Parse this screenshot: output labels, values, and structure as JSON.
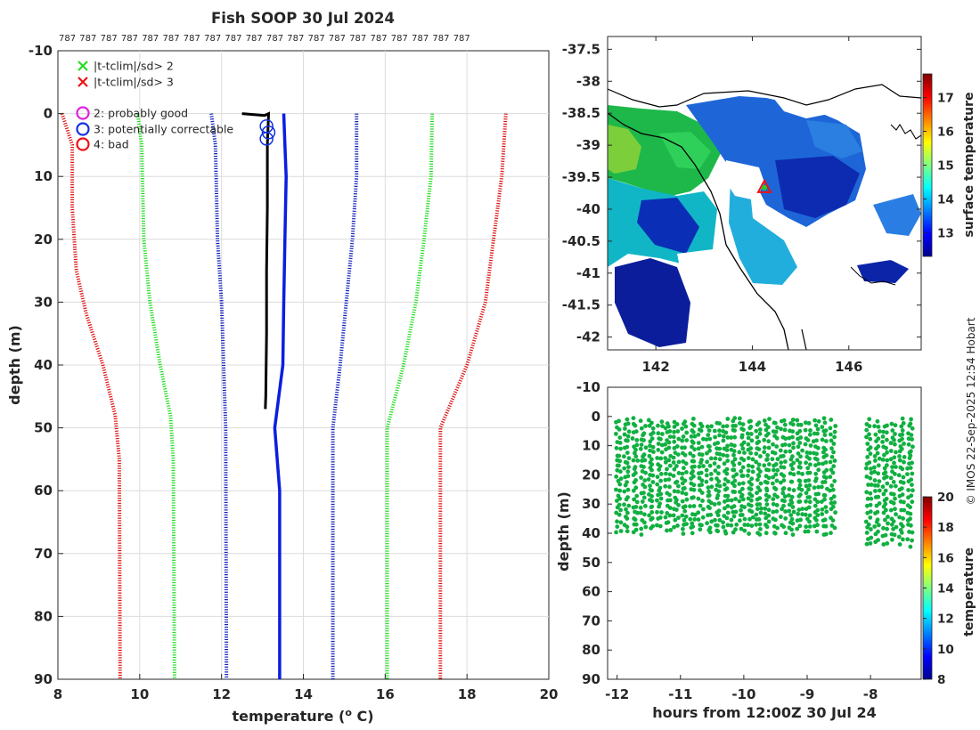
{
  "chart_data": [
    {
      "type": "line",
      "name": "profile",
      "title": "Fish SOOP 30 Jul 2024",
      "xlabel": "temperature (",
      "xlabel_sup": "o",
      "xlabel_tail": " C)",
      "ylabel": "depth (m)",
      "xlim": [
        8,
        20
      ],
      "ylim": [
        -10,
        90
      ],
      "xticks": [
        "8",
        "10",
        "12",
        "14",
        "16",
        "18",
        "20"
      ],
      "yticks": [
        "-10",
        "0",
        "10",
        "20",
        "30",
        "40",
        "50",
        "60",
        "70",
        "80",
        "90"
      ],
      "counts_row": [
        "787",
        "787",
        "787",
        "787",
        "787",
        "787",
        "787",
        "787",
        "787",
        "787",
        "787",
        "787",
        "787",
        "787",
        "787",
        "787",
        "787",
        "787",
        "787",
        "787"
      ],
      "legend_items": [
        {
          "label": "|t-tclim|/sd> 2",
          "color": "#22dd22",
          "marker": "x"
        },
        {
          "label": "|t-tclim|/sd> 3",
          "color": "#ee1111",
          "marker": "x"
        },
        {
          "label": "2: probably good",
          "color": "#dd22dd",
          "marker": "o"
        },
        {
          "label": "3: potentially correctable",
          "color": "#1133dd",
          "marker": "o"
        },
        {
          "label": "4: bad",
          "color": "#ee1111",
          "marker": "o"
        }
      ],
      "series": [
        {
          "name": "clim -3sd",
          "color": "#dd1111",
          "style": "dotted",
          "points": [
            [
              8.1,
              0
            ],
            [
              8.35,
              5
            ],
            [
              8.35,
              15
            ],
            [
              8.45,
              25
            ],
            [
              8.7,
              32
            ],
            [
              9.1,
              40
            ],
            [
              9.4,
              48
            ],
            [
              9.5,
              55
            ],
            [
              9.52,
              90
            ]
          ]
        },
        {
          "name": "clim -2sd",
          "color": "#22dd22",
          "style": "dotted",
          "points": [
            [
              9.95,
              0
            ],
            [
              10.05,
              5
            ],
            [
              10.1,
              20
            ],
            [
              10.25,
              30
            ],
            [
              10.5,
              40
            ],
            [
              10.75,
              48
            ],
            [
              10.82,
              55
            ],
            [
              10.85,
              90
            ]
          ]
        },
        {
          "name": "clim -1sd",
          "color": "#1122bb",
          "style": "dotted",
          "points": [
            [
              11.75,
              0
            ],
            [
              11.85,
              5
            ],
            [
              11.9,
              20
            ],
            [
              12.0,
              30
            ],
            [
              12.05,
              40
            ],
            [
              12.1,
              50
            ],
            [
              12.12,
              90
            ]
          ]
        },
        {
          "name": "clim +1sd",
          "color": "#1122bb",
          "style": "dotted",
          "points": [
            [
              15.3,
              0
            ],
            [
              15.3,
              10
            ],
            [
              15.2,
              20
            ],
            [
              15.05,
              30
            ],
            [
              14.9,
              40
            ],
            [
              14.72,
              50
            ],
            [
              14.72,
              90
            ]
          ]
        },
        {
          "name": "clim +2sd",
          "color": "#22dd22",
          "style": "dotted",
          "points": [
            [
              17.15,
              0
            ],
            [
              17.12,
              10
            ],
            [
              16.95,
              20
            ],
            [
              16.75,
              30
            ],
            [
              16.45,
              40
            ],
            [
              16.05,
              50
            ],
            [
              16.05,
              90
            ]
          ]
        },
        {
          "name": "clim +3sd",
          "color": "#dd1111",
          "style": "dotted",
          "points": [
            [
              18.95,
              0
            ],
            [
              18.85,
              10
            ],
            [
              18.65,
              20
            ],
            [
              18.45,
              30
            ],
            [
              18.0,
              40
            ],
            [
              17.35,
              50
            ],
            [
              17.35,
              90
            ]
          ]
        },
        {
          "name": "climatology mean",
          "color": "#0a1ee0",
          "style": "solid",
          "points": [
            [
              13.52,
              0
            ],
            [
              13.55,
              5
            ],
            [
              13.58,
              10
            ],
            [
              13.55,
              20
            ],
            [
              13.52,
              30
            ],
            [
              13.5,
              40
            ],
            [
              13.3,
              50
            ],
            [
              13.42,
              60
            ],
            [
              13.42,
              70
            ],
            [
              13.42,
              90
            ]
          ]
        },
        {
          "name": "measured temperature",
          "color": "#000000",
          "style": "solid",
          "points": [
            [
              12.5,
              0
            ],
            [
              13.05,
              0.3
            ],
            [
              13.15,
              0
            ],
            [
              13.12,
              5
            ],
            [
              13.12,
              15
            ],
            [
              13.1,
              25
            ],
            [
              13.1,
              35
            ],
            [
              13.08,
              45
            ],
            [
              13.07,
              47
            ]
          ]
        }
      ],
      "flag_circles": [
        [
          13.1,
          2
        ],
        [
          13.15,
          3
        ],
        [
          13.1,
          4
        ]
      ]
    },
    {
      "type": "heatmap",
      "name": "sst map",
      "xticks": [
        "142",
        "144",
        "146"
      ],
      "yticks": [
        "-37.5",
        "-38",
        "-38.5",
        "-39",
        "-39.5",
        "-40",
        "-40.5",
        "-41",
        "-41.5",
        "-42"
      ],
      "xlim": [
        141,
        147.5
      ],
      "ylim": [
        -42.2,
        -37.3
      ],
      "marker": {
        "lon": 144.25,
        "lat": -39.65,
        "symbol": "triangle"
      },
      "colorbar": {
        "label": "surface temperature",
        "ticks": [
          "13",
          "14",
          "15",
          "16",
          "17"
        ],
        "range": [
          12.3,
          17.7
        ]
      }
    },
    {
      "type": "scatter",
      "name": "depth-time sections",
      "xlabel": "hours from 12:00Z 30 Jul 24",
      "ylabel": "depth (m)",
      "xlim": [
        -12.15,
        -7.2
      ],
      "ylim": [
        -10,
        90
      ],
      "xticks": [
        "-12",
        "-11",
        "-10",
        "-9",
        "-8"
      ],
      "yticks": [
        "-10",
        "0",
        "10",
        "20",
        "30",
        "40",
        "50",
        "60",
        "70",
        "80",
        "90"
      ],
      "point_color": "#10b040",
      "cast_groups": [
        {
          "start": -12.0,
          "end": -8.62,
          "spacing": 0.13,
          "maxdepth": 41
        },
        {
          "start": -8.05,
          "end": -7.32,
          "spacing": 0.13,
          "maxdepth": 45
        }
      ],
      "colorbar": {
        "label": "temperature",
        "ticks": [
          "8",
          "10",
          "12",
          "14",
          "16",
          "18",
          "20"
        ],
        "range": [
          8,
          20
        ]
      }
    }
  ],
  "copyright": "© IMOS 22-Sep-2025 12:54 Hobart"
}
